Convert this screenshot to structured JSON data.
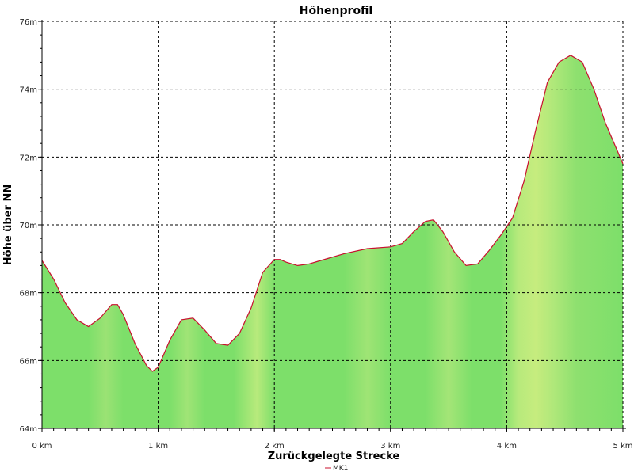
{
  "chart_data": {
    "type": "area",
    "title": "Höhenprofil",
    "xlabel": "Zurückgelegte Strecke",
    "ylabel": "Höhe über NN",
    "x_ticks": [
      0,
      1,
      2,
      3,
      4,
      5
    ],
    "x_tick_labels": [
      "0 km",
      "1 km",
      "2 km",
      "3 km",
      "4 km",
      "5 km"
    ],
    "y_ticks": [
      64,
      66,
      68,
      70,
      72,
      74,
      76
    ],
    "y_tick_labels": [
      "64m",
      "66m",
      "68m",
      "70m",
      "72m",
      "74m",
      "76m"
    ],
    "xlim": [
      0,
      5
    ],
    "ylim": [
      64,
      76
    ],
    "grid": true,
    "legend_position": "bottom-center",
    "colors": {
      "line": "#c8102e",
      "fill_green": "#7ddf6a",
      "fill_yellow": "#c6ec7e",
      "grid": "#000000"
    },
    "series": [
      {
        "name": "MK1",
        "x": [
          0,
          0.1,
          0.2,
          0.3,
          0.4,
          0.5,
          0.6,
          0.65,
          0.7,
          0.8,
          0.9,
          0.95,
          1.0,
          1.1,
          1.2,
          1.3,
          1.4,
          1.5,
          1.6,
          1.7,
          1.8,
          1.9,
          2.0,
          2.05,
          2.1,
          2.2,
          2.3,
          2.4,
          2.6,
          2.8,
          3.0,
          3.1,
          3.2,
          3.3,
          3.37,
          3.45,
          3.55,
          3.65,
          3.75,
          3.85,
          3.95,
          4.05,
          4.15,
          4.25,
          4.35,
          4.45,
          4.55,
          4.65,
          4.75,
          4.85,
          5.0
        ],
        "y": [
          68.95,
          68.4,
          67.7,
          67.2,
          67.0,
          67.25,
          67.65,
          67.65,
          67.35,
          66.5,
          65.85,
          65.68,
          65.8,
          66.6,
          67.2,
          67.25,
          66.9,
          66.5,
          66.45,
          66.8,
          67.55,
          68.6,
          68.98,
          68.98,
          68.9,
          68.8,
          68.85,
          68.95,
          69.15,
          69.3,
          69.35,
          69.45,
          69.8,
          70.1,
          70.15,
          69.8,
          69.2,
          68.8,
          68.85,
          69.25,
          69.7,
          70.2,
          71.3,
          72.8,
          74.2,
          74.8,
          75.0,
          74.8,
          74.0,
          73.0,
          71.8
        ]
      }
    ]
  }
}
